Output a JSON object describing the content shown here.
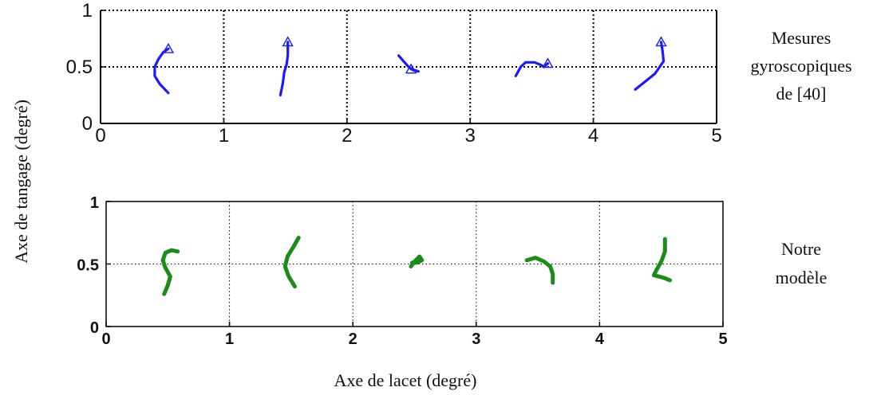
{
  "figure": {
    "ylabel": "Axe de tangage (degré)",
    "xlabel": "Axe de lacet (degré)"
  },
  "chart_data": [
    {
      "type": "line",
      "side_label": [
        "Mesures",
        "gyroscopiques",
        "de [40]"
      ],
      "xlim": [
        0,
        5
      ],
      "ylim": [
        0,
        1
      ],
      "xticks": [
        "0",
        "1",
        "2",
        "3",
        "4",
        "5"
      ],
      "yticks": [
        "0",
        "0.5",
        "1"
      ],
      "grid": true,
      "color": "#1a1aff",
      "marker_end": "triangle",
      "traces": [
        [
          [
            0.55,
            0.27
          ],
          [
            0.48,
            0.35
          ],
          [
            0.44,
            0.42
          ],
          [
            0.44,
            0.5
          ],
          [
            0.47,
            0.57
          ],
          [
            0.51,
            0.63
          ],
          [
            0.55,
            0.66
          ]
        ],
        [
          [
            1.46,
            0.25
          ],
          [
            1.48,
            0.36
          ],
          [
            1.49,
            0.45
          ],
          [
            1.51,
            0.52
          ],
          [
            1.52,
            0.6
          ],
          [
            1.52,
            0.72
          ]
        ],
        [
          [
            2.42,
            0.6
          ],
          [
            2.46,
            0.55
          ],
          [
            2.5,
            0.5
          ],
          [
            2.54,
            0.47
          ],
          [
            2.58,
            0.46
          ],
          [
            2.52,
            0.48
          ]
        ],
        [
          [
            3.37,
            0.42
          ],
          [
            3.41,
            0.5
          ],
          [
            3.45,
            0.54
          ],
          [
            3.52,
            0.54
          ],
          [
            3.57,
            0.52
          ],
          [
            3.6,
            0.5
          ],
          [
            3.63,
            0.53
          ]
        ],
        [
          [
            4.34,
            0.3
          ],
          [
            4.42,
            0.37
          ],
          [
            4.5,
            0.44
          ],
          [
            4.57,
            0.55
          ],
          [
            4.56,
            0.65
          ],
          [
            4.55,
            0.72
          ]
        ]
      ]
    },
    {
      "type": "line",
      "side_label": [
        "Notre",
        "modèle"
      ],
      "xlim": [
        0,
        5
      ],
      "ylim": [
        0,
        1
      ],
      "xticks": [
        "0",
        "1",
        "2",
        "3",
        "4",
        "5"
      ],
      "yticks": [
        "0",
        "0.5",
        "1"
      ],
      "grid": true,
      "color": "#1a8c1a",
      "traces": [
        [
          [
            0.47,
            0.26
          ],
          [
            0.5,
            0.33
          ],
          [
            0.52,
            0.4
          ],
          [
            0.48,
            0.47
          ],
          [
            0.46,
            0.53
          ],
          [
            0.48,
            0.59
          ],
          [
            0.53,
            0.61
          ],
          [
            0.58,
            0.6
          ]
        ],
        [
          [
            1.53,
            0.32
          ],
          [
            1.48,
            0.4
          ],
          [
            1.45,
            0.48
          ],
          [
            1.47,
            0.56
          ],
          [
            1.52,
            0.64
          ],
          [
            1.56,
            0.71
          ]
        ],
        [
          [
            2.47,
            0.48
          ],
          [
            2.5,
            0.52
          ],
          [
            2.54,
            0.56
          ],
          [
            2.56,
            0.53
          ],
          [
            2.52,
            0.51
          ],
          [
            2.48,
            0.51
          ]
        ],
        [
          [
            3.41,
            0.53
          ],
          [
            3.48,
            0.55
          ],
          [
            3.55,
            0.52
          ],
          [
            3.6,
            0.48
          ],
          [
            3.62,
            0.42
          ],
          [
            3.62,
            0.35
          ]
        ],
        [
          [
            4.53,
            0.7
          ],
          [
            4.53,
            0.6
          ],
          [
            4.5,
            0.52
          ],
          [
            4.46,
            0.45
          ],
          [
            4.44,
            0.41
          ],
          [
            4.48,
            0.4
          ],
          [
            4.52,
            0.39
          ],
          [
            4.57,
            0.37
          ]
        ]
      ]
    }
  ]
}
